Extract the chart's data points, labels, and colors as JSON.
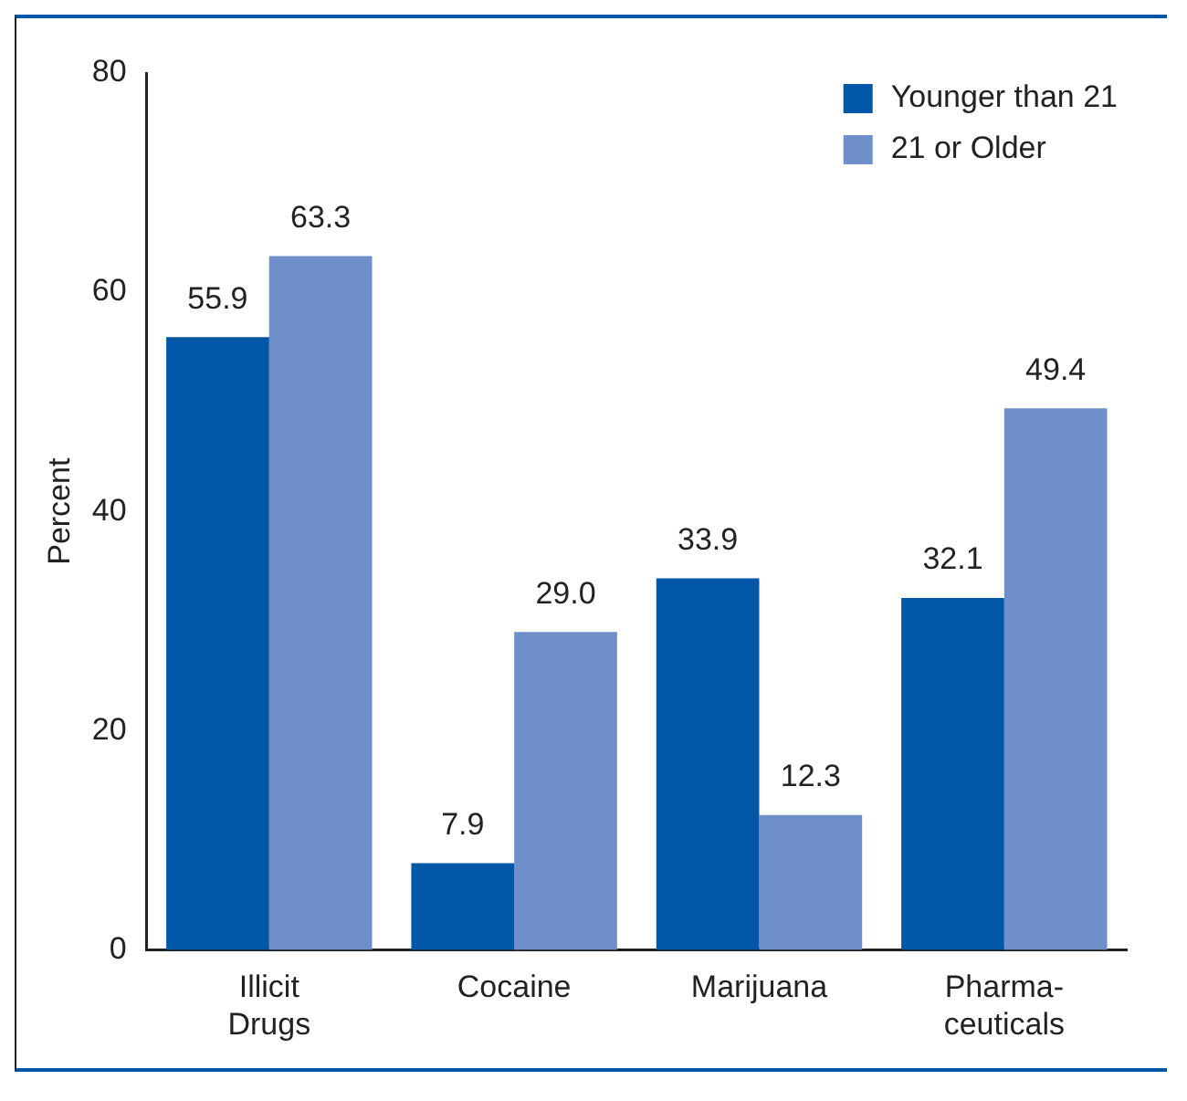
{
  "chart_data": {
    "type": "bar",
    "ylabel": "Percent",
    "categories": [
      "Illicit Drugs",
      "Cocaine",
      "Marijuana",
      "Pharma-ceuticals"
    ],
    "series": [
      {
        "name": "Younger than 21",
        "color": "#0057a8",
        "values": [
          55.9,
          7.9,
          33.9,
          32.1
        ]
      },
      {
        "name": "21 or Older",
        "color": "#6e8fca",
        "values": [
          63.3,
          29.0,
          12.3,
          49.4
        ]
      }
    ],
    "value_labels": [
      [
        "55.9",
        "7.9",
        "33.9",
        "32.1"
      ],
      [
        "63.3",
        "29.0",
        "12.3",
        "49.4"
      ]
    ],
    "ylim": [
      0,
      80
    ],
    "yticks": [
      0,
      20,
      40,
      60,
      80
    ],
    "grid": false,
    "legend": "top right"
  }
}
